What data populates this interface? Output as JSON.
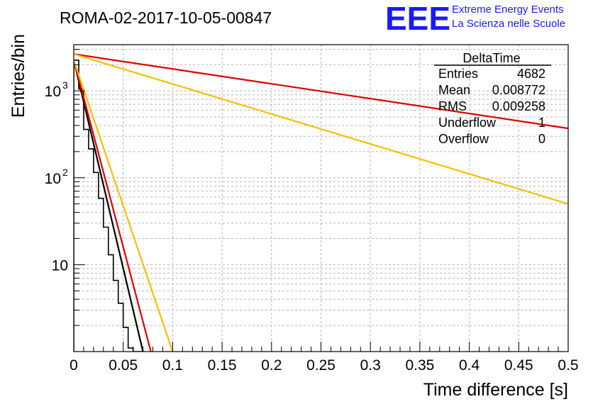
{
  "chart_data": {
    "type": "line",
    "title": "ROMA-02-2017-10-05-00847",
    "xlabel": "Time difference [s]",
    "ylabel": "Entries/bin",
    "xlim": [
      0,
      0.5
    ],
    "ylim": [
      1.0,
      3400
    ],
    "yscale": "log",
    "grid": true,
    "x_ticks": [
      "0",
      "0.05",
      "0.1",
      "0.15",
      "0.2",
      "0.25",
      "0.3",
      "0.35",
      "0.4",
      "0.45",
      "0.5"
    ],
    "y_tick_labels": [
      {
        "base": "10",
        "exp": "",
        "value": 10
      },
      {
        "base": "10",
        "exp": "2",
        "value": 100
      },
      {
        "base": "10",
        "exp": "3",
        "value": 1000
      }
    ],
    "histogram": {
      "name": "DeltaTime",
      "color": "#000000",
      "bin_width": 0.005,
      "bin_edges_start": 0.0,
      "values": [
        2250,
        1050,
        360,
        215,
        115,
        58,
        27,
        13,
        6.6,
        3.6,
        1.9,
        1.1,
        0.9,
        0.8
      ]
    },
    "series": [
      {
        "name": "fit-black",
        "color": "#000000",
        "x": [
          0.0,
          0.07
        ],
        "y": [
          2250,
          1.0
        ]
      },
      {
        "name": "fit-red-steep",
        "color": "#e00000",
        "x": [
          0.0,
          0.078
        ],
        "y": [
          2250,
          1.0
        ]
      },
      {
        "name": "fit-yellow-steep",
        "color": "#f5c000",
        "x": [
          0.0,
          0.1
        ],
        "y": [
          2250,
          1.0
        ]
      },
      {
        "name": "fit-red-flat",
        "color": "#e00000",
        "x": [
          0.0,
          0.5
        ],
        "y": [
          2650,
          370
        ]
      },
      {
        "name": "fit-yellow-flat",
        "color": "#f5c000",
        "x": [
          0.0,
          0.5
        ],
        "y": [
          2650,
          50
        ]
      }
    ],
    "stats_box": {
      "title": "DeltaTime",
      "rows": [
        {
          "label": "Entries",
          "value": "4682"
        },
        {
          "label": "Mean",
          "value": "0.008772"
        },
        {
          "label": "RMS",
          "value": "0.009258"
        },
        {
          "label": "Underflow",
          "value": "1"
        },
        {
          "label": "Overflow",
          "value": "0"
        }
      ]
    },
    "logo": {
      "text": "EEE",
      "line1": "Extreme Energy Events",
      "line2": "La Scienza nelle Scuole",
      "color": "#1a1aff"
    }
  }
}
